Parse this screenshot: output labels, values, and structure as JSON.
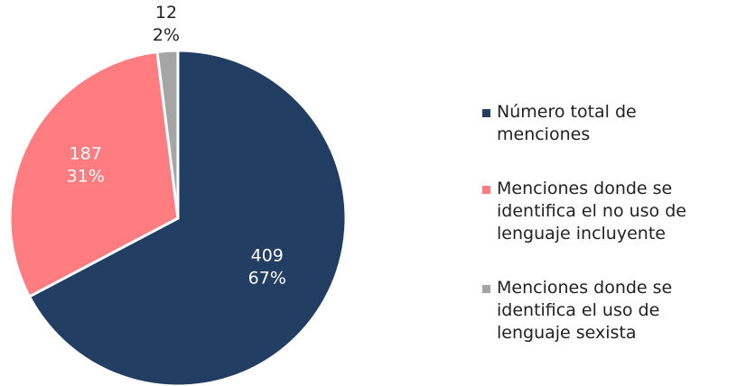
{
  "chart_data": {
    "type": "pie",
    "categories": [
      "Número total de menciones",
      "Menciones donde se identifica el no uso de lenguaje incluyente",
      "Menciones donde se identifica el uso de lenguaje sexista"
    ],
    "values": [
      409,
      187,
      12
    ],
    "percent_labels": [
      "67%",
      "31%",
      "2%"
    ],
    "colors": [
      "#223f63",
      "#ff7c80",
      "#a5a5a5"
    ],
    "legend": "right"
  }
}
